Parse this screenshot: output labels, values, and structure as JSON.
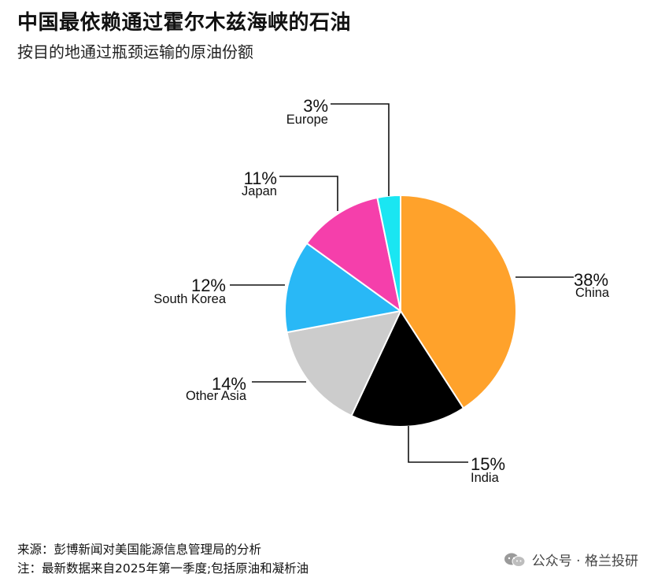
{
  "header": {
    "title": "中国最依赖通过霍尔木兹海峡的石油",
    "subtitle": "按目的地通过瓶颈运输的原油份额"
  },
  "footer": {
    "source": "来源：彭博新闻对美国能源信息管理局的分析",
    "note": "注：最新数据来自2025年第一季度;包括原油和凝析油"
  },
  "watermark": {
    "text": "公众号 · 格兰投研",
    "icon": "wechat-icon"
  },
  "chart_data": {
    "type": "pie",
    "start": "12 o'clock",
    "direction": "clockwise",
    "slices": [
      {
        "name": "China",
        "value": 38,
        "label": "38%",
        "color": "#FFA22B"
      },
      {
        "name": "India",
        "value": 15,
        "label": "15%",
        "color": "#000000"
      },
      {
        "name": "Other Asia",
        "value": 14,
        "label": "14%",
        "color": "#CCCCCC"
      },
      {
        "name": "South Korea",
        "value": 12,
        "label": "12%",
        "color": "#29B8F6"
      },
      {
        "name": "Japan",
        "value": 11,
        "label": "11%",
        "color": "#F53FAB"
      },
      {
        "name": "Europe",
        "value": 3,
        "label": "3%",
        "color": "#1AE6F2"
      }
    ]
  }
}
